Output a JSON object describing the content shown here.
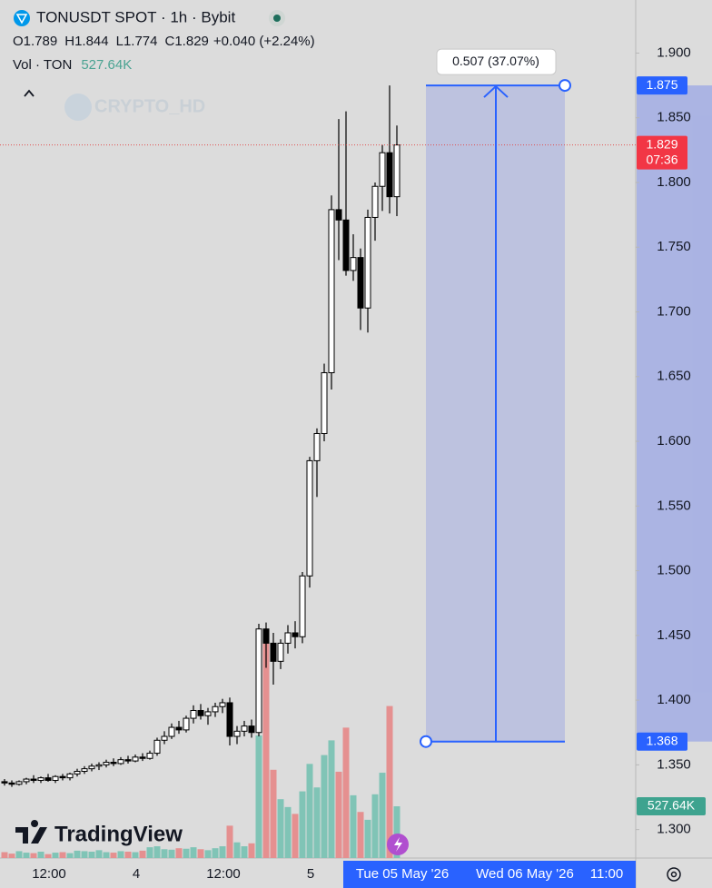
{
  "chart_data": {
    "type": "candlestick",
    "title": "TONUSDT SPOT · 1h · Bybit",
    "ohlc_legend": [
      {
        "label": "O",
        "value": "1.789"
      },
      {
        "label": "H",
        "value": "1.844"
      },
      {
        "label": "L",
        "value": "1.774"
      },
      {
        "label": "C",
        "value": "1.829"
      }
    ],
    "change": "+0.040 (+2.24%)",
    "volume_legend": "Vol · TON",
    "last_volume_label": "527.64K",
    "watermark": "CRYPTO_HD",
    "brand": "TradingView",
    "countdown": "07:36",
    "categories": [
      null,
      null,
      null,
      null,
      null,
      null,
      "12:00",
      null,
      null,
      null,
      null,
      null,
      null,
      null,
      null,
      null,
      null,
      null,
      "4",
      null,
      null,
      null,
      null,
      null,
      null,
      null,
      null,
      null,
      null,
      null,
      "12:00",
      null,
      null,
      null,
      null,
      null,
      null,
      null,
      null,
      null,
      null,
      null,
      "5",
      null,
      null,
      null,
      null,
      null,
      null,
      null,
      null,
      null,
      null,
      null,
      null
    ],
    "x_range_labels": [
      "Tue 05 May '26",
      "Wed 06 May '26",
      "11:00"
    ],
    "open": [
      1.337,
      1.336,
      1.335,
      1.337,
      1.339,
      1.338,
      1.34,
      1.338,
      1.341,
      1.34,
      1.343,
      1.345,
      1.347,
      1.349,
      1.35,
      1.352,
      1.351,
      1.354,
      1.353,
      1.356,
      1.355,
      1.359,
      1.369,
      1.372,
      1.379,
      1.377,
      1.386,
      1.392,
      1.388,
      1.391,
      1.395,
      1.398,
      1.372,
      1.376,
      1.38,
      1.375,
      1.455,
      1.444,
      1.43,
      1.444,
      1.452,
      1.449,
      1.496,
      1.585,
      1.606,
      1.653,
      1.779,
      1.771,
      1.732,
      1.742,
      1.703,
      1.773,
      1.797,
      1.823,
      1.789
    ],
    "high": [
      1.339,
      1.338,
      1.338,
      1.34,
      1.342,
      1.341,
      1.343,
      1.342,
      1.343,
      1.344,
      1.347,
      1.349,
      1.351,
      1.352,
      1.354,
      1.355,
      1.356,
      1.357,
      1.358,
      1.359,
      1.361,
      1.371,
      1.376,
      1.382,
      1.384,
      1.388,
      1.396,
      1.397,
      1.394,
      1.398,
      1.401,
      1.402,
      1.38,
      1.384,
      1.385,
      1.459,
      1.46,
      1.452,
      1.447,
      1.458,
      1.461,
      1.499,
      1.588,
      1.61,
      1.66,
      1.79,
      1.849,
      1.855,
      1.76,
      1.749,
      1.779,
      1.8,
      1.829,
      1.875,
      1.844
    ],
    "low": [
      1.334,
      1.333,
      1.334,
      1.335,
      1.336,
      1.336,
      1.337,
      1.336,
      1.338,
      1.338,
      1.341,
      1.343,
      1.345,
      1.346,
      1.348,
      1.349,
      1.35,
      1.351,
      1.352,
      1.353,
      1.354,
      1.357,
      1.366,
      1.37,
      1.374,
      1.375,
      1.382,
      1.385,
      1.381,
      1.387,
      1.39,
      1.365,
      1.366,
      1.372,
      1.371,
      1.372,
      1.425,
      1.412,
      1.424,
      1.436,
      1.44,
      1.444,
      1.487,
      1.557,
      1.6,
      1.64,
      1.74,
      1.728,
      1.724,
      1.686,
      1.684,
      1.755,
      1.778,
      1.776,
      1.774
    ],
    "close": [
      1.336,
      1.335,
      1.337,
      1.339,
      1.338,
      1.34,
      1.338,
      1.341,
      1.34,
      1.343,
      1.345,
      1.347,
      1.349,
      1.35,
      1.352,
      1.351,
      1.354,
      1.353,
      1.356,
      1.355,
      1.359,
      1.369,
      1.372,
      1.379,
      1.377,
      1.386,
      1.392,
      1.388,
      1.391,
      1.395,
      1.398,
      1.372,
      1.376,
      1.38,
      1.375,
      1.455,
      1.444,
      1.43,
      1.444,
      1.452,
      1.449,
      1.496,
      1.585,
      1.606,
      1.653,
      1.779,
      1.771,
      1.732,
      1.742,
      1.703,
      1.773,
      1.797,
      1.823,
      1.789,
      1.829
    ],
    "volume": [
      60,
      45,
      70,
      55,
      50,
      65,
      40,
      55,
      60,
      50,
      75,
      70,
      65,
      80,
      60,
      55,
      70,
      65,
      60,
      75,
      110,
      120,
      90,
      85,
      100,
      95,
      110,
      90,
      80,
      100,
      120,
      330,
      160,
      120,
      150,
      1250,
      2300,
      900,
      600,
      520,
      450,
      680,
      960,
      720,
      1050,
      1200,
      880,
      1330,
      640,
      470,
      390,
      650,
      870,
      1550,
      527.64
    ],
    "up_color": "#ffffff",
    "down_color": "#000000",
    "volume_up_color": "#80c4b6",
    "volume_down_color": "#e59090",
    "ylim": [
      1.278,
      1.941
    ],
    "yticks": [
      {
        "value": 1.3,
        "label": "1.300"
      },
      {
        "value": 1.35,
        "label": "1.350"
      },
      {
        "value": 1.4,
        "label": "1.400"
      },
      {
        "value": 1.45,
        "label": "1.450"
      },
      {
        "value": 1.5,
        "label": "1.500"
      },
      {
        "value": 1.55,
        "label": "1.550"
      },
      {
        "value": 1.6,
        "label": "1.600"
      },
      {
        "value": 1.65,
        "label": "1.650"
      },
      {
        "value": 1.7,
        "label": "1.700"
      },
      {
        "value": 1.75,
        "label": "1.750"
      },
      {
        "value": 1.8,
        "label": "1.800"
      },
      {
        "value": 1.85,
        "label": "1.850"
      },
      {
        "value": 1.9,
        "label": "1.900"
      }
    ],
    "y2lim": [
      0,
      8750
    ],
    "measure": {
      "from": 1.368,
      "to": 1.875,
      "label": "0.507 (37.07%)"
    }
  }
}
